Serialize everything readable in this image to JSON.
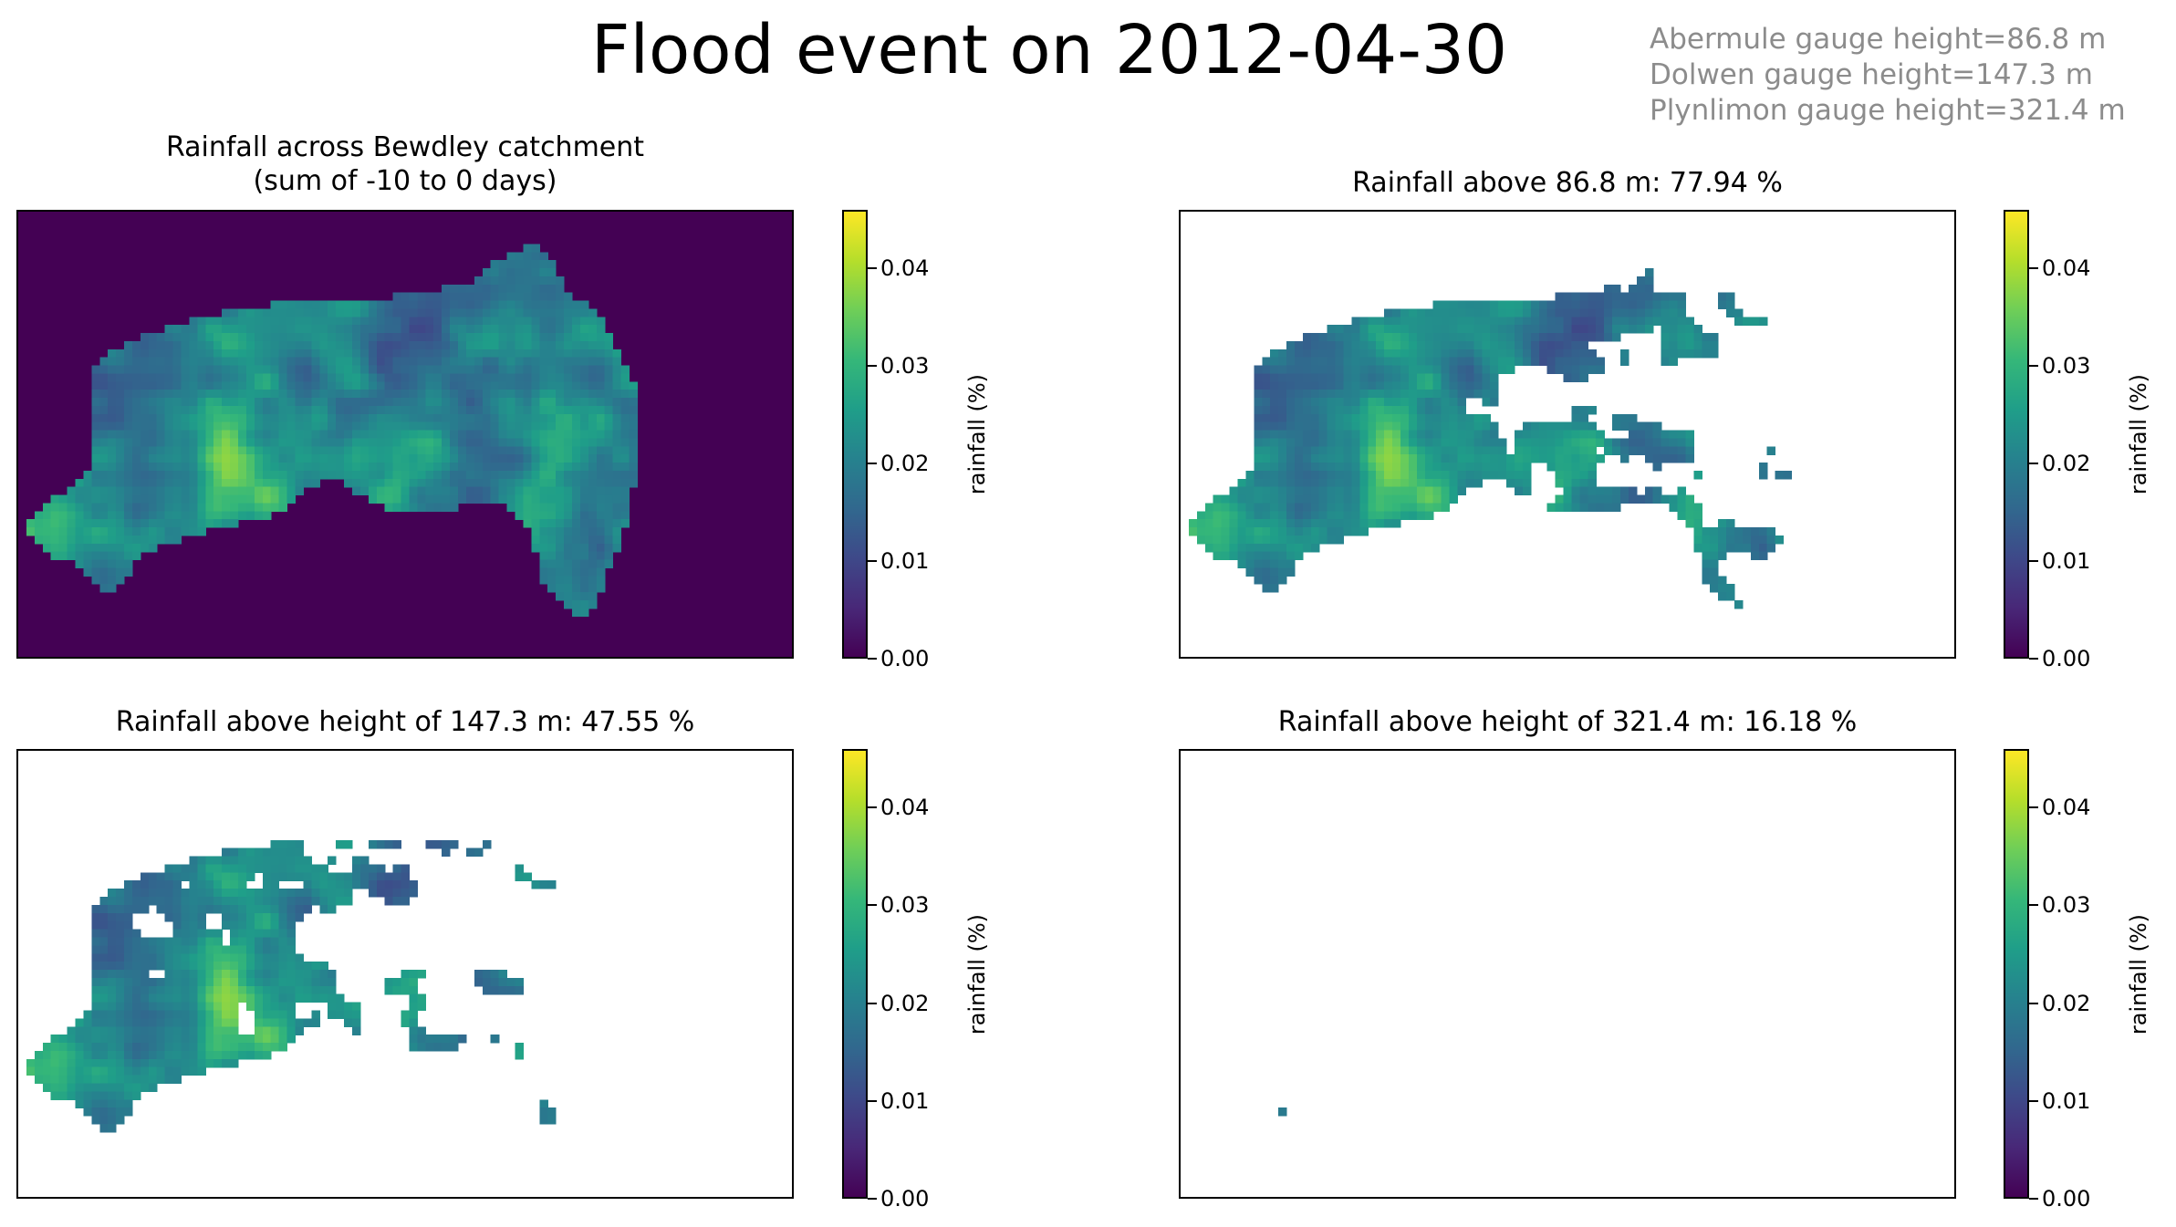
{
  "figure": {
    "suptitle": "Flood event on 2012-04-30",
    "gauge_lines": [
      "Abermule gauge height=86.8 m",
      "Dolwen gauge height=147.3 m",
      "Plynlimon gauge height=321.4 m"
    ]
  },
  "colormap": {
    "name": "viridis",
    "background_color": "#440154",
    "stops": [
      "#440154",
      "#482878",
      "#3e4989",
      "#31688e",
      "#26828e",
      "#1f9e89",
      "#35b779",
      "#6ece58",
      "#b5de2b",
      "#fde725"
    ]
  },
  "chart_data": [
    {
      "type": "heatmap",
      "title": "Rainfall across Bewdley catchment\n(sum of -10 to 0 days)",
      "colorbar_label": "rainfall (%)",
      "colorbar_range": [
        0,
        0.046
      ],
      "colorbar_ticks": [
        "0.00",
        "0.01",
        "0.02",
        "0.03",
        "0.04"
      ],
      "height_threshold_m": null,
      "masked_background": true
    },
    {
      "type": "heatmap",
      "title": "Rainfall above 86.8 m: 77.94 %",
      "colorbar_label": "rainfall (%)",
      "colorbar_range": [
        0,
        0.046
      ],
      "colorbar_ticks": [
        "0.00",
        "0.01",
        "0.02",
        "0.03",
        "0.04"
      ],
      "height_threshold_m": 86.8,
      "rainfall_share_percent": 77.94,
      "masked_background": false
    },
    {
      "type": "heatmap",
      "title": "Rainfall above height of 147.3 m: 47.55 %",
      "colorbar_label": "rainfall (%)",
      "colorbar_range": [
        0,
        0.046
      ],
      "colorbar_ticks": [
        "0.00",
        "0.01",
        "0.02",
        "0.03",
        "0.04"
      ],
      "height_threshold_m": 147.3,
      "rainfall_share_percent": 47.55,
      "masked_background": false
    },
    {
      "type": "heatmap",
      "title": "Rainfall above height of 321.4 m: 16.18 %",
      "colorbar_label": "rainfall (%)",
      "colorbar_range": [
        0,
        0.046
      ],
      "colorbar_ticks": [
        "0.00",
        "0.01",
        "0.02",
        "0.03",
        "0.04"
      ],
      "height_threshold_m": 321.4,
      "rainfall_share_percent": 16.18,
      "masked_background": false
    }
  ]
}
